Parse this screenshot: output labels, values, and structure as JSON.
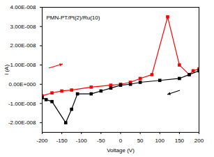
{
  "chart_data": {
    "type": "line",
    "x_label": "Voltage (V)",
    "y_label": "I (A)",
    "annotation": "PMN-PT/Pt(2)/Ru(10)",
    "xlim": [
      -200,
      200
    ],
    "xticks": [
      -200,
      -150,
      -100,
      -50,
      0,
      50,
      100,
      150,
      200
    ],
    "ylim": [
      -2.5e-08,
      4e-08
    ],
    "yticks": [
      {
        "value": -2e-08,
        "label": "-2.00E-008"
      },
      {
        "value": -1e-08,
        "label": "-1.00E-008"
      },
      {
        "value": 0,
        "label": "0.00E+000"
      },
      {
        "value": 1e-08,
        "label": "1.00E-008"
      },
      {
        "value": 2e-08,
        "label": "2.00E-008"
      },
      {
        "value": 3e-08,
        "label": "3.00E-008"
      },
      {
        "value": 4e-08,
        "label": "4.00E-008"
      }
    ],
    "grid": false,
    "series": [
      {
        "color": "#ff0000",
        "marker": "square",
        "line_style": "solid",
        "x": [
          -200,
          -175,
          -150,
          -125,
          -75,
          -25,
          0,
          25,
          50,
          80,
          120,
          150,
          175,
          185,
          200
        ],
        "values": [
          -6e-09,
          -4.5e-09,
          -3.5e-09,
          -3e-09,
          -1.5e-09,
          -5e-10,
          0,
          1e-09,
          3e-09,
          5e-09,
          3.5e-08,
          1e-08,
          5e-09,
          7e-09,
          8e-09
        ]
      },
      {
        "color": "#000000",
        "marker": "square",
        "line_style": "solid",
        "x": [
          200,
          175,
          150,
          100,
          50,
          25,
          0,
          -25,
          -50,
          -75,
          -110,
          -125,
          -140,
          -175,
          -190,
          -200
        ],
        "values": [
          7e-09,
          5e-09,
          3e-09,
          2e-09,
          1e-09,
          0,
          -5e-10,
          -2e-09,
          -3.5e-09,
          -5e-09,
          -5e-09,
          -1.3e-08,
          -2e-08,
          -9e-09,
          -8e-09,
          -7e-09
        ]
      }
    ]
  }
}
